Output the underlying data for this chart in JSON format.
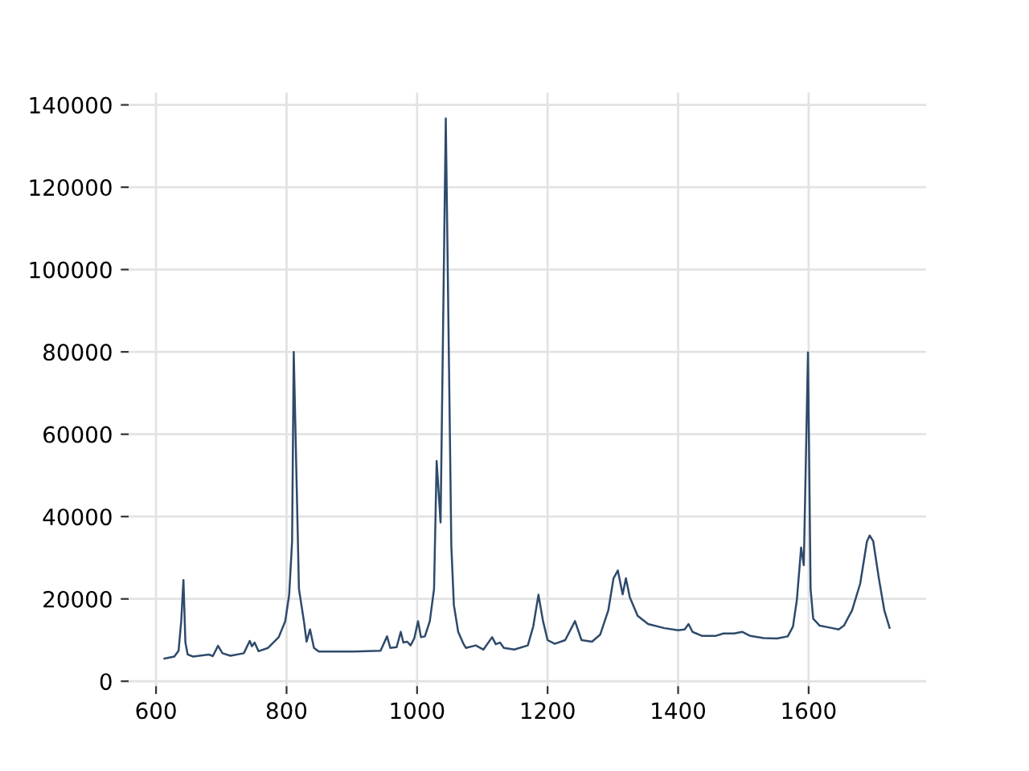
{
  "chart_data": {
    "type": "line",
    "x": [
      613,
      628,
      634.5,
      638.6,
      642,
      645,
      648.5,
      656.7,
      681,
      687,
      695,
      701.8,
      714,
      734.5,
      743.6,
      747,
      751,
      757,
      771.7,
      788,
      798,
      804,
      808.5,
      811,
      819,
      826.6,
      830.7,
      836,
      842,
      849.5,
      903,
      944,
      954,
      959,
      968.7,
      975,
      979,
      985,
      990,
      995.7,
      1001.5,
      1006,
      1012,
      1019.5,
      1026,
      1030,
      1036,
      1044,
      1052.5,
      1056.4,
      1063,
      1071,
      1075,
      1090,
      1101.7,
      1115,
      1120.6,
      1127,
      1133,
      1149,
      1169.7,
      1178,
      1186,
      1193,
      1200,
      1211,
      1227,
      1242,
      1252,
      1268,
      1280.5,
      1293,
      1301,
      1307.6,
      1315,
      1320,
      1326,
      1338,
      1354,
      1379,
      1400,
      1410,
      1416,
      1422,
      1437,
      1457,
      1469.5,
      1486,
      1498,
      1510.6,
      1531,
      1551.5,
      1568,
      1576,
      1582,
      1588.5,
      1592.6,
      1599,
      1603,
      1607,
      1617,
      1633.5,
      1646,
      1654,
      1666.5,
      1679,
      1689.4,
      1693.6,
      1699,
      1707.6,
      1716,
      1724
    ],
    "series": [
      {
        "color": "#2e4a6b",
        "values": [
          5500,
          6000,
          7400,
          14600,
          24600,
          9400,
          6500,
          6000,
          6500,
          6100,
          8600,
          6800,
          6200,
          6800,
          9800,
          8500,
          9400,
          7300,
          8100,
          10700,
          14600,
          21000,
          34000,
          80000,
          22400,
          14600,
          9600,
          12600,
          8100,
          7200,
          7200,
          7400,
          10900,
          8100,
          8300,
          12000,
          9400,
          9600,
          8700,
          10400,
          14600,
          10700,
          10900,
          14600,
          22400,
          53500,
          38600,
          136700,
          32800,
          18500,
          12000,
          9100,
          8100,
          8700,
          7700,
          10700,
          9000,
          9400,
          8100,
          7700,
          8700,
          13300,
          21000,
          14600,
          10000,
          9100,
          10000,
          14600,
          10000,
          9600,
          11300,
          17200,
          25000,
          26900,
          21100,
          25000,
          20400,
          15900,
          13900,
          12900,
          12400,
          12600,
          13900,
          12000,
          11000,
          11000,
          11600,
          11600,
          12000,
          11000,
          10500,
          10400,
          10900,
          13300,
          19800,
          32500,
          28200,
          79900,
          22400,
          15200,
          13500,
          13000,
          12600,
          13500,
          17200,
          23700,
          34000,
          35400,
          34000,
          25000,
          17200,
          13000
        ]
      }
    ],
    "xlim": [
      558,
      1780
    ],
    "ylim": [
      -1200,
      143000
    ],
    "xticks": [
      600,
      800,
      1000,
      1200,
      1400,
      1600
    ],
    "yticks": [
      0,
      20000,
      40000,
      60000,
      80000,
      100000,
      120000,
      140000
    ],
    "grid": true
  }
}
